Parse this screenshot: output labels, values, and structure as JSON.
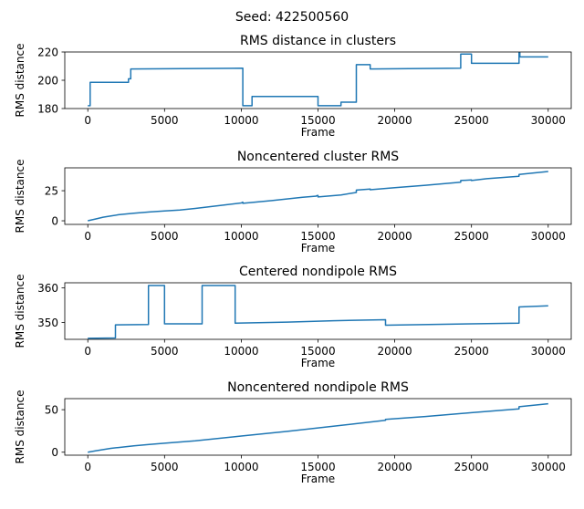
{
  "figure": {
    "suptitle": "Seed: 422500560",
    "series_color": "#1f77b4"
  },
  "chart_data": [
    {
      "type": "line",
      "title": "RMS distance in clusters",
      "xlabel": "Frame",
      "ylabel": "RMS distance",
      "xlim": [
        -1500,
        31500
      ],
      "ylim": [
        180,
        220
      ],
      "xticks": [
        0,
        5000,
        10000,
        15000,
        20000,
        25000,
        30000
      ],
      "yticks": [
        180,
        200,
        220
      ],
      "series": [
        {
          "x": [
            0,
            150,
            150,
            2650,
            2650,
            2800,
            2800,
            10100,
            10100,
            10700,
            10700,
            15000,
            15000,
            16500,
            16500,
            17500,
            17500,
            18400,
            18400,
            24300,
            24300,
            25000,
            25000,
            28100,
            28100,
            28150,
            28150,
            30000
          ],
          "y": [
            182,
            182,
            198.5,
            198.5,
            201,
            201,
            208,
            208.5,
            182,
            182,
            188.5,
            188.5,
            182,
            182,
            184.5,
            184.5,
            211,
            211,
            208,
            208.5,
            218.5,
            218.5,
            212,
            212,
            219.5,
            219.5,
            216.5,
            216.5
          ]
        }
      ]
    },
    {
      "type": "line",
      "title": "Noncentered cluster RMS",
      "xlabel": "Frame",
      "ylabel": "RMS distance",
      "xlim": [
        -1500,
        31500
      ],
      "ylim": [
        -3,
        44
      ],
      "xticks": [
        0,
        5000,
        10000,
        15000,
        20000,
        25000,
        30000
      ],
      "yticks": [
        0,
        25
      ],
      "series": [
        {
          "x": [
            0,
            500,
            1000,
            1500,
            2000,
            3000,
            4000,
            5000,
            6000,
            7000,
            8000,
            9000,
            10000,
            10100,
            10100,
            12000,
            14000,
            14900,
            14900,
            15000,
            15000,
            16500,
            17500,
            17500,
            18000,
            18400,
            18400,
            20000,
            22000,
            24300,
            24300,
            25000,
            25000,
            26000,
            28100,
            28100,
            30000
          ],
          "y": [
            0,
            1.5,
            3,
            4,
            5,
            6.3,
            7.3,
            8.2,
            9,
            10.3,
            11.8,
            13.3,
            14.8,
            15.5,
            14.5,
            16.8,
            19.5,
            20.5,
            20.8,
            21,
            19.8,
            21.5,
            23.5,
            25.5,
            26,
            26.4,
            25.8,
            27.5,
            29.5,
            32,
            33.5,
            34,
            33.5,
            35,
            37,
            38.5,
            41
          ]
        }
      ]
    },
    {
      "type": "line",
      "title": "Centered nondipole RMS",
      "xlabel": "Frame",
      "ylabel": "RMS distance",
      "xlim": [
        -1500,
        31500
      ],
      "ylim": [
        345.1,
        361.5
      ],
      "xticks": [
        0,
        5000,
        10000,
        15000,
        20000,
        25000,
        30000
      ],
      "yticks": [
        350,
        360
      ],
      "series": [
        {
          "x": [
            0,
            1800,
            1800,
            3950,
            3950,
            5000,
            5000,
            7450,
            7450,
            9600,
            9600,
            13000,
            16000,
            19400,
            19400,
            28100,
            28100,
            30000
          ],
          "y": [
            345.4,
            345.5,
            349.3,
            349.4,
            360.7,
            360.7,
            349.6,
            349.6,
            360.7,
            360.7,
            349.8,
            350.1,
            350.5,
            350.8,
            349.2,
            349.8,
            354.5,
            354.8
          ]
        }
      ]
    },
    {
      "type": "line",
      "title": "Noncentered nondipole RMS",
      "xlabel": "Frame",
      "ylabel": "RMS distance",
      "xlim": [
        -1500,
        31500
      ],
      "ylim": [
        -3.5,
        63
      ],
      "xticks": [
        0,
        5000,
        10000,
        15000,
        20000,
        25000,
        30000
      ],
      "yticks": [
        0,
        50
      ],
      "series": [
        {
          "x": [
            0,
            500,
            1000,
            1500,
            2000,
            3000,
            4000,
            5000,
            7000,
            10000,
            13000,
            16000,
            19400,
            19400,
            22000,
            25000,
            28100,
            28100,
            30000
          ],
          "y": [
            0,
            1.5,
            3,
            4.5,
            5.5,
            7.5,
            9,
            10.5,
            13.5,
            19,
            24.5,
            30.5,
            37.5,
            38.5,
            42,
            46.5,
            51,
            53.5,
            57
          ]
        }
      ]
    }
  ]
}
